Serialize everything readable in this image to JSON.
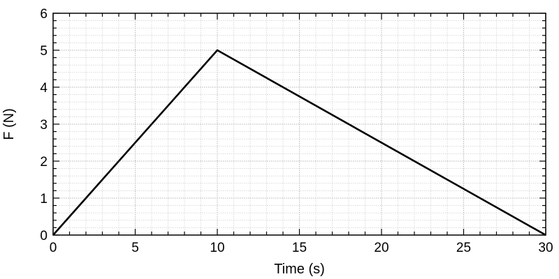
{
  "chart_data": {
    "type": "line",
    "xlabel": "Time (s)",
    "ylabel": "F (N)",
    "xlim": [
      0,
      30
    ],
    "ylim": [
      0,
      6
    ],
    "xticks": [
      0,
      5,
      10,
      15,
      20,
      25,
      30
    ],
    "yticks": [
      0,
      1,
      2,
      3,
      4,
      5,
      6
    ],
    "x_minor_step": 1,
    "y_minor_step": 0.2,
    "grid": true,
    "series": [
      {
        "x": [
          0,
          10,
          30
        ],
        "y": [
          0,
          5,
          0
        ],
        "color": "#000000"
      }
    ]
  }
}
